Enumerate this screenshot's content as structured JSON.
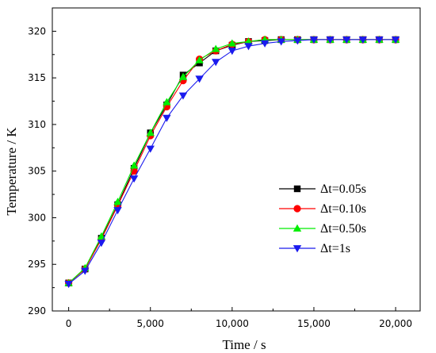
{
  "chart_data": {
    "type": "line",
    "xlabel": "Time / s",
    "ylabel": "Temperature / K",
    "xlim": [
      -1000,
      21500
    ],
    "ylim": [
      290,
      322.5
    ],
    "x_ticks": [
      0,
      5000,
      10000,
      15000,
      20000
    ],
    "x_tick_labels": [
      "0",
      "5,000",
      "10,000",
      "15,000",
      "20,000"
    ],
    "y_ticks": [
      290,
      295,
      300,
      305,
      310,
      315,
      320
    ],
    "y_tick_labels": [
      "290",
      "295",
      "300",
      "305",
      "310",
      "315",
      "320"
    ],
    "grid": false,
    "legend_position": "right",
    "x": [
      0,
      1000,
      2000,
      3000,
      4000,
      5000,
      6000,
      7000,
      8000,
      9000,
      10000,
      11000,
      12000,
      13000,
      14000,
      15000,
      16000,
      17000,
      18000,
      19000,
      20000
    ],
    "series": [
      {
        "name": "Δt=0.05s",
        "color": "#000000",
        "marker": "square",
        "values": [
          293.0,
          294.5,
          297.8,
          301.4,
          305.3,
          309.1,
          312.1,
          315.3,
          316.6,
          317.9,
          318.5,
          318.9,
          319.0,
          319.1,
          319.1,
          319.1,
          319.1,
          319.1,
          319.1,
          319.1,
          319.1
        ]
      },
      {
        "name": "Δt=0.10s",
        "color": "#ff0000",
        "marker": "circle",
        "values": [
          293.0,
          294.5,
          297.7,
          301.3,
          305.0,
          308.8,
          311.9,
          314.7,
          317.0,
          317.9,
          318.6,
          318.9,
          319.1,
          319.1,
          319.1,
          319.1,
          319.1,
          319.1,
          319.1,
          319.1,
          319.1
        ]
      },
      {
        "name": "Δt=0.50s",
        "color": "#00ee00",
        "marker": "triangle-up",
        "values": [
          293.0,
          294.6,
          298.0,
          301.7,
          305.6,
          309.1,
          312.4,
          315.1,
          316.9,
          318.1,
          318.7,
          318.9,
          319.1,
          319.1,
          319.1,
          319.1,
          319.1,
          319.1,
          319.1,
          319.1,
          319.1
        ]
      },
      {
        "name": "Δt=1s",
        "color": "#1a1aee",
        "marker": "triangle-down",
        "values": [
          292.9,
          294.3,
          297.3,
          300.8,
          304.2,
          307.4,
          310.7,
          313.1,
          314.9,
          316.7,
          317.9,
          318.4,
          318.7,
          318.9,
          319.0,
          319.1,
          319.1,
          319.1,
          319.1,
          319.1,
          319.1
        ]
      }
    ]
  }
}
